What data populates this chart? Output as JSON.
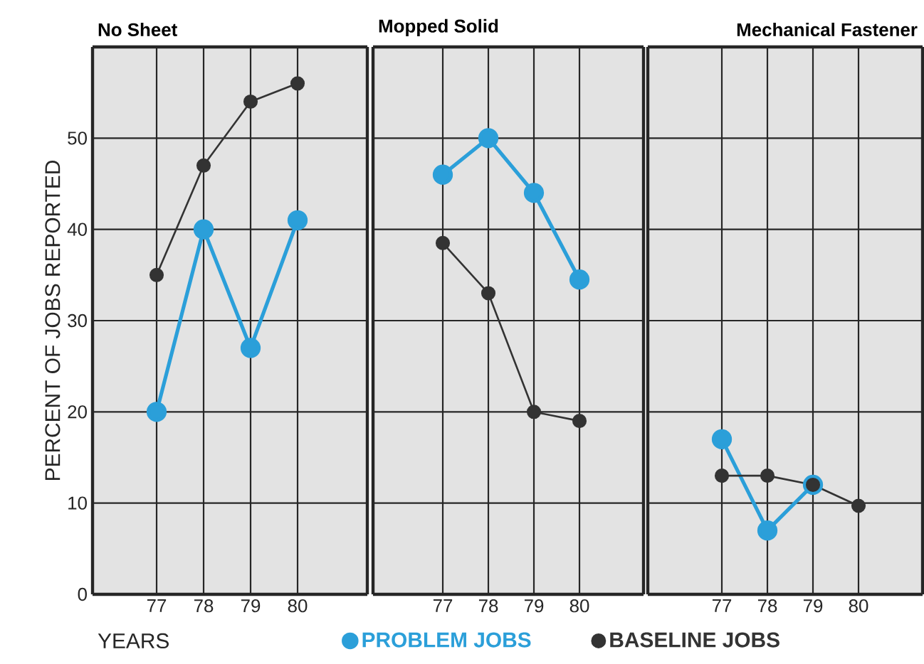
{
  "chart_data": [
    {
      "type": "line",
      "title": "No Sheet",
      "xlabel": "YEARS",
      "ylabel": "PERCENT OF JOBS REPORTED",
      "categories": [
        "77",
        "78",
        "79",
        "80"
      ],
      "series": [
        {
          "name": "PROBLEM JOBS",
          "color": "#2b9fd9",
          "values": [
            20,
            40,
            27,
            41
          ]
        },
        {
          "name": "BASELINE JOBS",
          "color": "#333333",
          "values": [
            35,
            47,
            54,
            56
          ]
        }
      ],
      "ylim": [
        0,
        60
      ],
      "yticks": [
        0,
        10,
        20,
        30,
        40,
        50
      ],
      "grid": true,
      "marker": "circle",
      "legend": "bottom"
    },
    {
      "type": "line",
      "title": "Mopped Solid",
      "categories": [
        "77",
        "78",
        "79",
        "80"
      ],
      "series": [
        {
          "color": "#2b9fd9",
          "values": [
            46,
            50,
            44,
            34.5
          ]
        },
        {
          "color": "#333333",
          "values": [
            38.5,
            33,
            20,
            19
          ]
        }
      ],
      "ylim": [
        0,
        60
      ],
      "yticks": [
        0,
        10,
        20,
        30,
        40,
        50
      ],
      "grid": true,
      "marker": "circle",
      "tick_labels": "x"
    },
    {
      "type": "line",
      "title": "Mechanical Fastener",
      "categories": [
        "77",
        "78",
        "79",
        "80"
      ],
      "series": [
        {
          "color": "#2b9fd9",
          "values": [
            17,
            7,
            12,
            null
          ]
        },
        {
          "color": "#333333",
          "values": [
            13,
            13,
            12,
            9.7
          ]
        }
      ],
      "ylim": [
        0,
        60
      ],
      "yticks": [
        0,
        10,
        20,
        30,
        40,
        50
      ],
      "grid": true,
      "marker": "circle",
      "tick_labels": "x"
    }
  ]
}
